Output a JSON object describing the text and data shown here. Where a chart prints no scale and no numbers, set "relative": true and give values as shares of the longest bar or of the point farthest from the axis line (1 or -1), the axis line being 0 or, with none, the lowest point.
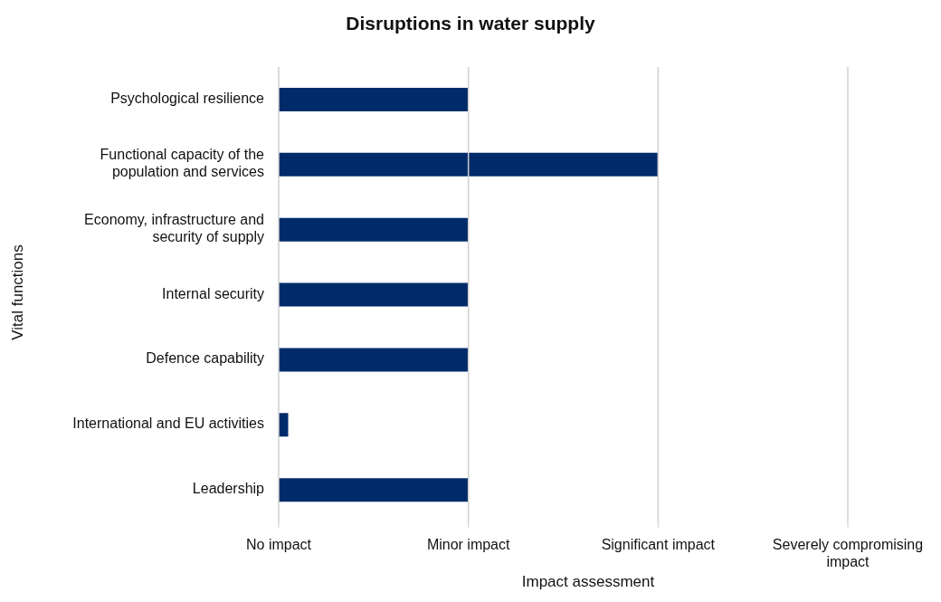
{
  "chart_data": {
    "type": "bar",
    "orientation": "horizontal",
    "relative": true,
    "title": "Disruptions in water supply",
    "xlabel": "Impact assessment",
    "ylabel": "Vital functions",
    "categories": [
      "Psychological resilience",
      "Functional capacity of the population and services",
      "Economy, infrastructure and security of supply",
      "Internal security",
      "Defence capability",
      "International and EU activities",
      "Leadership"
    ],
    "values": [
      0.5,
      1,
      0.5,
      0.5,
      0.5,
      0.025,
      0.5
    ],
    "color": "#002b6b",
    "ref_lines": [
      {
        "axis": "x",
        "value": 0,
        "label": "No impact",
        "color": "#d0d0d0"
      },
      {
        "axis": "x",
        "value": 0.5,
        "label": "Minor impact",
        "color": "#d0d0d0"
      },
      {
        "axis": "x",
        "value": 1,
        "label": "Significant impact",
        "color": "#d0d0d0"
      },
      {
        "axis": "x",
        "value": 1.5,
        "label": "Severely compromising impact",
        "color": "#d0d0d0"
      }
    ],
    "legend": false
  }
}
